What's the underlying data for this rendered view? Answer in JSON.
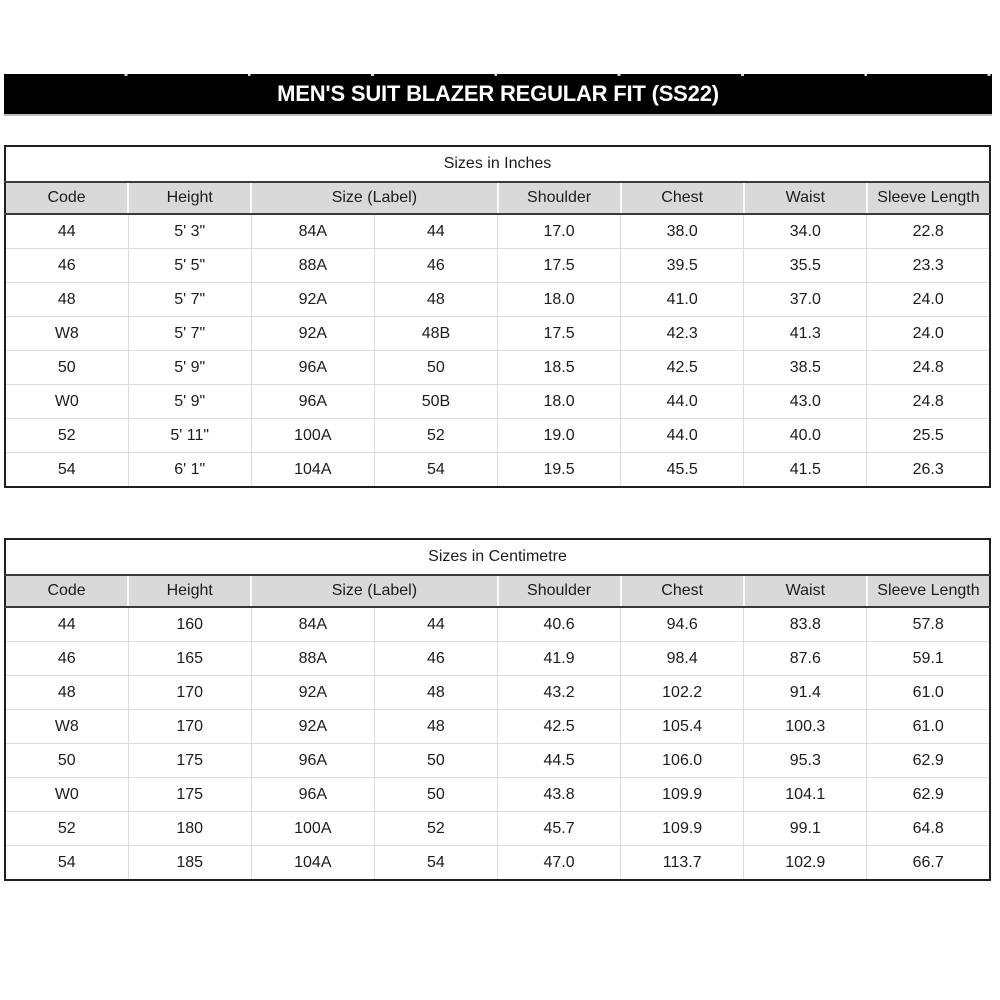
{
  "title_bar": {
    "label": "MEN'S SUIT BLAZER REGULAR FIT (SS22)"
  },
  "colors": {
    "title_bar_bg": "#000000",
    "title_bar_text": "#ffffff",
    "table_header_bg": "#d9d9d9",
    "border_dark": "#1f1f1f",
    "grid_light": "#dcdcdc",
    "text": "#1c1c1c"
  },
  "chart_data": [
    {
      "type": "table",
      "title": "Sizes in Inches",
      "columns": [
        "Code",
        "Height",
        "Size (Label)",
        "Shoulder",
        "Chest",
        "Waist",
        "Sleeve Length"
      ],
      "header_spans": [
        1,
        1,
        2,
        1,
        1,
        1,
        1
      ],
      "rows": [
        [
          "44",
          "5' 3\"",
          "84A",
          "44",
          "17.0",
          "38.0",
          "34.0",
          "22.8"
        ],
        [
          "46",
          "5' 5\"",
          "88A",
          "46",
          "17.5",
          "39.5",
          "35.5",
          "23.3"
        ],
        [
          "48",
          "5' 7\"",
          "92A",
          "48",
          "18.0",
          "41.0",
          "37.0",
          "24.0"
        ],
        [
          "W8",
          "5' 7\"",
          "92A",
          "48B",
          "17.5",
          "42.3",
          "41.3",
          "24.0"
        ],
        [
          "50",
          "5' 9\"",
          "96A",
          "50",
          "18.5",
          "42.5",
          "38.5",
          "24.8"
        ],
        [
          "W0",
          "5' 9\"",
          "96A",
          "50B",
          "18.0",
          "44.0",
          "43.0",
          "24.8"
        ],
        [
          "52",
          "5' 11\"",
          "100A",
          "52",
          "19.0",
          "44.0",
          "40.0",
          "25.5"
        ],
        [
          "54",
          "6' 1\"",
          "104A",
          "54",
          "19.5",
          "45.5",
          "41.5",
          "26.3"
        ]
      ]
    },
    {
      "type": "table",
      "title": "Sizes in Centimetre",
      "columns": [
        "Code",
        "Height",
        "Size (Label)",
        "Shoulder",
        "Chest",
        "Waist",
        "Sleeve Length"
      ],
      "header_spans": [
        1,
        1,
        2,
        1,
        1,
        1,
        1
      ],
      "rows": [
        [
          "44",
          "160",
          "84A",
          "44",
          "40.6",
          "94.6",
          "83.8",
          "57.8"
        ],
        [
          "46",
          "165",
          "88A",
          "46",
          "41.9",
          "98.4",
          "87.6",
          "59.1"
        ],
        [
          "48",
          "170",
          "92A",
          "48",
          "43.2",
          "102.2",
          "91.4",
          "61.0"
        ],
        [
          "W8",
          "170",
          "92A",
          "48",
          "42.5",
          "105.4",
          "100.3",
          "61.0"
        ],
        [
          "50",
          "175",
          "96A",
          "50",
          "44.5",
          "106.0",
          "95.3",
          "62.9"
        ],
        [
          "W0",
          "175",
          "96A",
          "50",
          "43.8",
          "109.9",
          "104.1",
          "62.9"
        ],
        [
          "52",
          "180",
          "100A",
          "52",
          "45.7",
          "109.9",
          "99.1",
          "64.8"
        ],
        [
          "54",
          "185",
          "104A",
          "54",
          "47.0",
          "113.7",
          "102.9",
          "66.7"
        ]
      ]
    }
  ]
}
